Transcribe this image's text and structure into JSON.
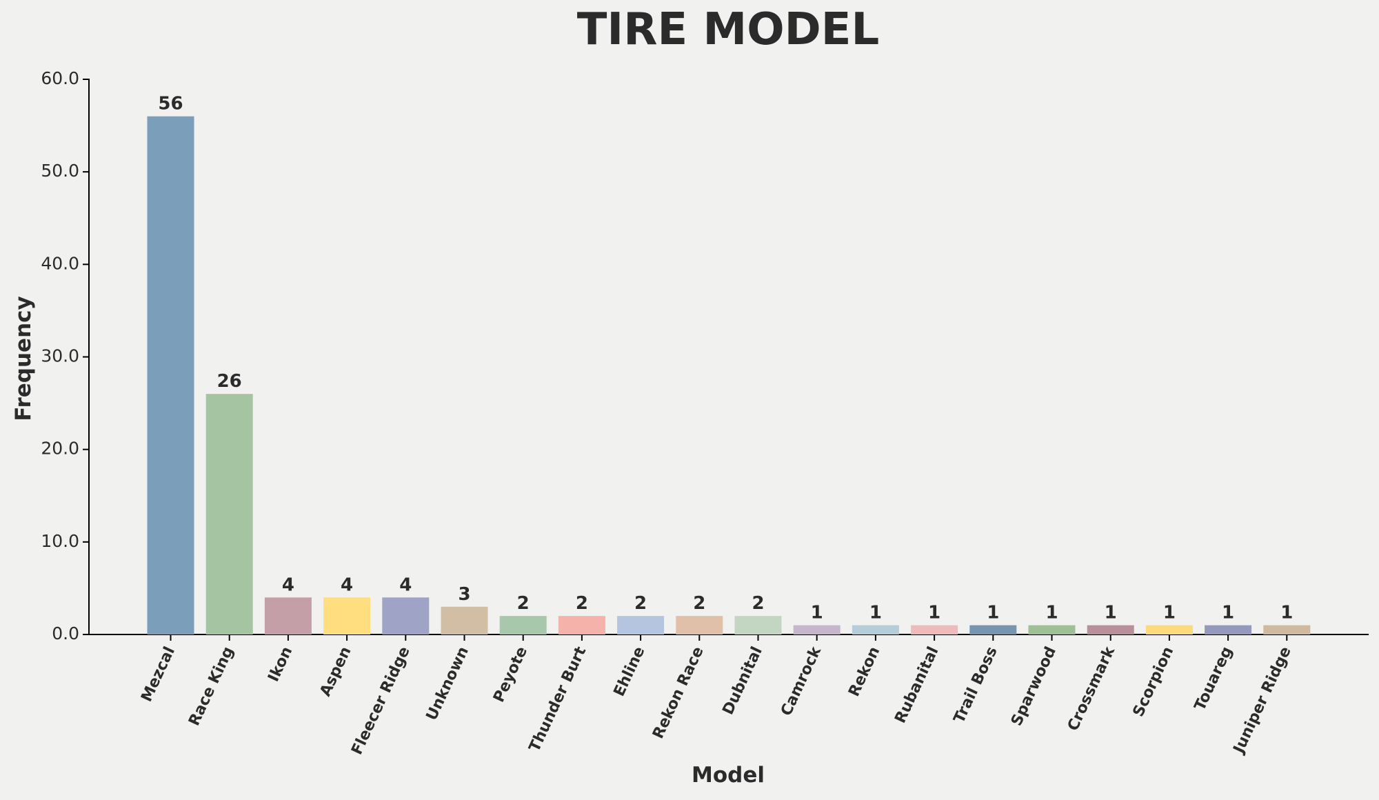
{
  "chart_data": {
    "type": "bar",
    "title": "TIRE MODEL",
    "x_label": "Model",
    "y_label": "Frequency",
    "categories": [
      "Mezcal",
      "Race King",
      "Ikon",
      "Aspen",
      "Fleecer Ridge",
      "Unknown",
      "Peyote",
      "Thunder Burt",
      "Ehline",
      "Rekon Race",
      "Dubnital",
      "Camrock",
      "Rekon",
      "Rubanital",
      "Trail Boss",
      "Sparwood",
      "Crossmark",
      "Scorpion",
      "Touareg",
      "Juniper Ridge"
    ],
    "values": [
      56,
      26,
      4,
      4,
      4,
      3,
      2,
      2,
      2,
      2,
      2,
      1,
      1,
      1,
      1,
      1,
      1,
      1,
      1,
      1
    ],
    "colors": [
      "#7b9fba",
      "#a5c4a1",
      "#c49fa8",
      "#ffde7f",
      "#9fa3c6",
      "#d2bda5",
      "#a8c8ab",
      "#f4b2aa",
      "#b5c4df",
      "#e0c0a8",
      "#c2d6c1",
      "#c5b6cc",
      "#b5cdd8",
      "#efbaba",
      "#7595b1",
      "#9fc094",
      "#b89099",
      "#fddb7a",
      "#9599bd",
      "#d0b99f"
    ],
    "ylim": [
      0,
      60
    ],
    "yticks": [
      {
        "value": 0,
        "label": "0.0"
      },
      {
        "value": 10,
        "label": "10.0"
      },
      {
        "value": 20,
        "label": "20.0"
      },
      {
        "value": 30,
        "label": "30.0"
      },
      {
        "value": 40,
        "label": "40.0"
      },
      {
        "value": 50,
        "label": "50.0"
      },
      {
        "value": 60,
        "label": "60.0"
      }
    ],
    "grid": false
  }
}
